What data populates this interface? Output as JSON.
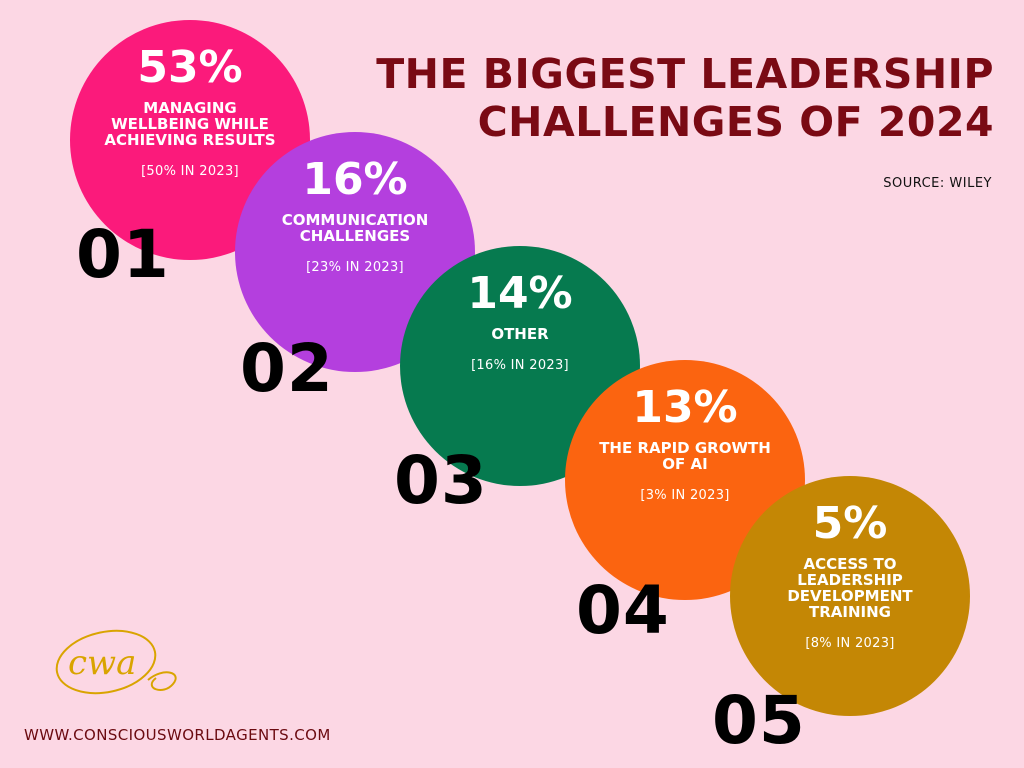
{
  "title": {
    "line1": "THE BIGGEST LEADERSHIP",
    "line2": "CHALLENGES OF 2024"
  },
  "source": "SOURCE: WILEY",
  "items": [
    {
      "number": "01",
      "percent": "53%",
      "label": "MANAGING WELLBEING WHILE ACHIEVING RESULTS",
      "previous": "[50% IN 2023]",
      "value": 53,
      "color": "#fb1a7b"
    },
    {
      "number": "02",
      "percent": "16%",
      "label": "COMMUNICATION CHALLENGES",
      "previous": "[23% IN 2023]",
      "value": 16,
      "color": "#b43fde"
    },
    {
      "number": "03",
      "percent": "14%",
      "label": "OTHER",
      "previous": "[16% IN 2023]",
      "value": 14,
      "color": "#067a4f"
    },
    {
      "number": "04",
      "percent": "13%",
      "label": "THE RAPID GROWTH OF AI",
      "previous": "[3% IN 2023]",
      "value": 13,
      "color": "#fb6410"
    },
    {
      "number": "05",
      "percent": "5%",
      "label": "ACCESS TO LEADERSHIP DEVELOPMENT TRAINING",
      "previous": "[8% IN 2023]",
      "value": 5,
      "color": "#c48705"
    }
  ],
  "logo": {
    "text": "cwa",
    "icon": "cwa-logo-icon"
  },
  "website": "WWW.CONSCIOUSWORLDAGENTS.COM"
}
